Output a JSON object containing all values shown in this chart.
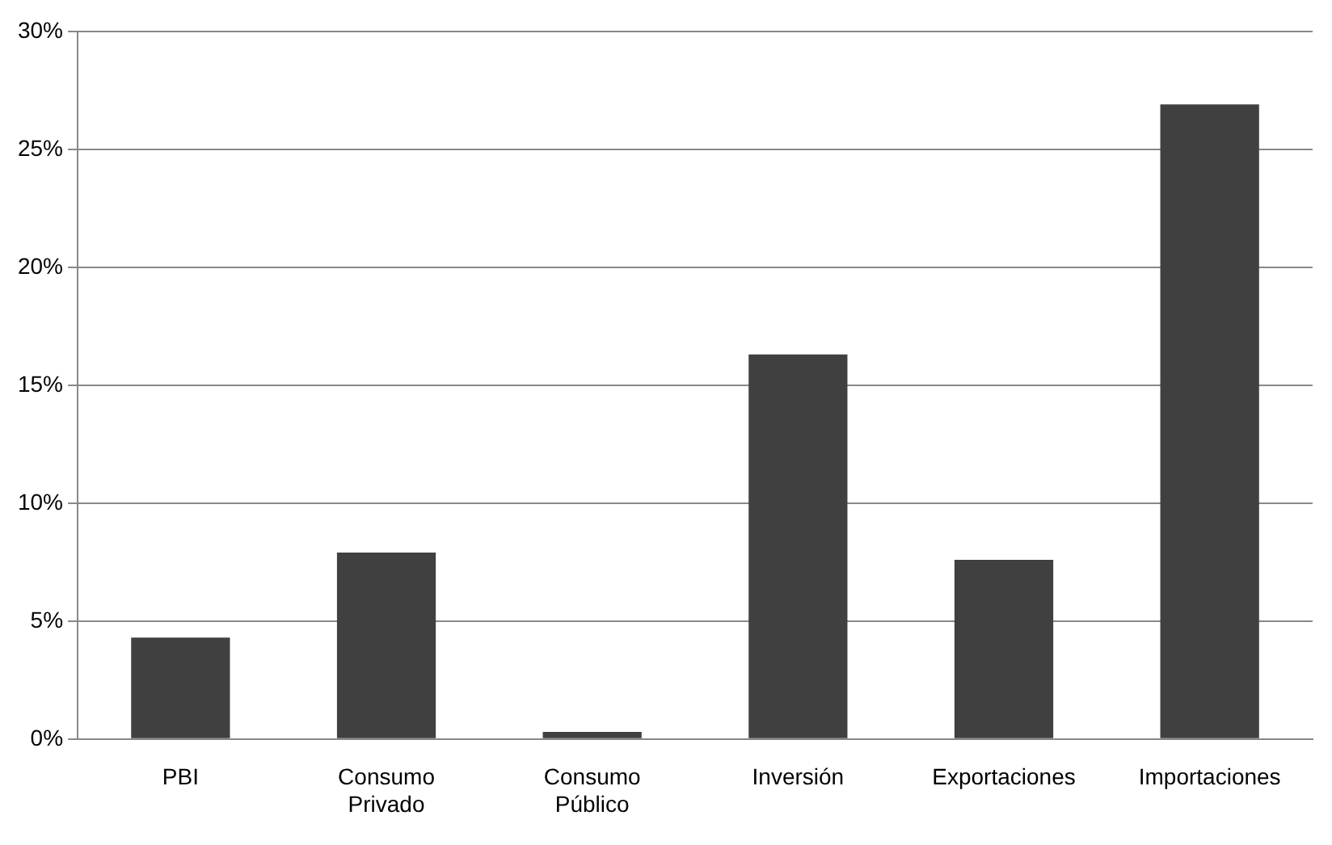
{
  "chart_data": {
    "type": "bar",
    "categories": [
      "PBI",
      "Consumo Privado",
      "Consumo Público",
      "Inversión",
      "Exportaciones",
      "Importaciones"
    ],
    "values": [
      4.3,
      7.9,
      0.3,
      16.3,
      7.6,
      26.9
    ],
    "color": "#404040",
    "ylim": [
      0,
      30
    ],
    "yticks": [
      {
        "value": 0,
        "label": "0%"
      },
      {
        "value": 5,
        "label": "5%"
      },
      {
        "value": 10,
        "label": "10%"
      },
      {
        "value": 15,
        "label": "15%"
      },
      {
        "value": 20,
        "label": "20%"
      },
      {
        "value": 25,
        "label": "25%"
      },
      {
        "value": 30,
        "label": "30%"
      }
    ],
    "grid": "y",
    "legend": false
  }
}
